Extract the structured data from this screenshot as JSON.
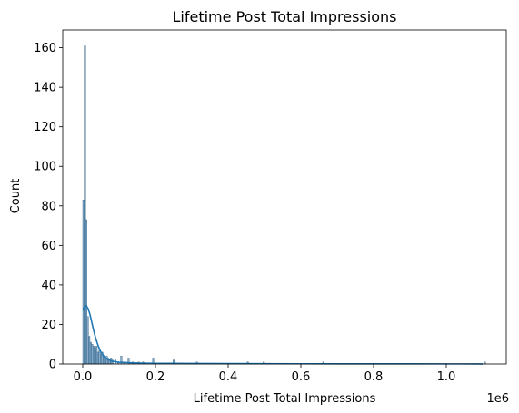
{
  "chart_data": {
    "type": "histogram",
    "title": "Lifetime Post Total Impressions",
    "xlabel": "Lifetime Post Total Impressions",
    "ylabel": "Count",
    "x_offset_label": "1e6",
    "xlim": [
      -55000,
      1165000
    ],
    "ylim": [
      0,
      169
    ],
    "x_ticks": [
      0,
      0.2,
      0.4,
      0.6,
      0.8,
      1.0
    ],
    "x_tick_labels": [
      "0.0",
      "0.2",
      "0.4",
      "0.6",
      "0.8",
      "1.0"
    ],
    "y_ticks": [
      0,
      20,
      40,
      60,
      80,
      100,
      120,
      140,
      160
    ],
    "y_tick_labels": [
      "0",
      "20",
      "40",
      "60",
      "80",
      "100",
      "120",
      "140",
      "160"
    ],
    "grid": false,
    "legend": "none",
    "colors": {
      "bar_fill": "#5b8db5",
      "bar_edge": "#2f5f86",
      "kde_line": "#1f77b4"
    },
    "bins": [
      {
        "x0": 0,
        "x1": 4000,
        "count": 83
      },
      {
        "x0": 4000,
        "x1": 8000,
        "count": 161
      },
      {
        "x0": 8000,
        "x1": 12000,
        "count": 73
      },
      {
        "x0": 12000,
        "x1": 16000,
        "count": 24
      },
      {
        "x0": 16000,
        "x1": 20000,
        "count": 14
      },
      {
        "x0": 20000,
        "x1": 24000,
        "count": 11
      },
      {
        "x0": 24000,
        "x1": 28000,
        "count": 10
      },
      {
        "x0": 28000,
        "x1": 32000,
        "count": 9
      },
      {
        "x0": 32000,
        "x1": 36000,
        "count": 8
      },
      {
        "x0": 36000,
        "x1": 40000,
        "count": 9
      },
      {
        "x0": 40000,
        "x1": 44000,
        "count": 6
      },
      {
        "x0": 44000,
        "x1": 48000,
        "count": 7
      },
      {
        "x0": 48000,
        "x1": 52000,
        "count": 5
      },
      {
        "x0": 52000,
        "x1": 56000,
        "count": 6
      },
      {
        "x0": 56000,
        "x1": 60000,
        "count": 4
      },
      {
        "x0": 60000,
        "x1": 64000,
        "count": 3
      },
      {
        "x0": 64000,
        "x1": 68000,
        "count": 4
      },
      {
        "x0": 68000,
        "x1": 72000,
        "count": 3
      },
      {
        "x0": 72000,
        "x1": 76000,
        "count": 2
      },
      {
        "x0": 76000,
        "x1": 80000,
        "count": 3
      },
      {
        "x0": 80000,
        "x1": 84000,
        "count": 2
      },
      {
        "x0": 88000,
        "x1": 92000,
        "count": 2
      },
      {
        "x0": 96000,
        "x1": 100000,
        "count": 1
      },
      {
        "x0": 104000,
        "x1": 108000,
        "count": 4
      },
      {
        "x0": 112000,
        "x1": 116000,
        "count": 1
      },
      {
        "x0": 124000,
        "x1": 128000,
        "count": 3
      },
      {
        "x0": 136000,
        "x1": 140000,
        "count": 1
      },
      {
        "x0": 152000,
        "x1": 156000,
        "count": 1
      },
      {
        "x0": 164000,
        "x1": 168000,
        "count": 1
      },
      {
        "x0": 192000,
        "x1": 196000,
        "count": 3
      },
      {
        "x0": 248000,
        "x1": 252000,
        "count": 2
      },
      {
        "x0": 312000,
        "x1": 316000,
        "count": 1
      },
      {
        "x0": 452000,
        "x1": 456000,
        "count": 1
      },
      {
        "x0": 496000,
        "x1": 500000,
        "count": 1
      },
      {
        "x0": 660000,
        "x1": 664000,
        "count": 1
      },
      {
        "x0": 1104000,
        "x1": 1108000,
        "count": 1
      }
    ],
    "kde": {
      "x": [
        0,
        5000,
        10000,
        15000,
        20000,
        25000,
        30000,
        35000,
        40000,
        45000,
        50000,
        60000,
        70000,
        80000,
        90000,
        100000,
        120000,
        140000,
        160000,
        180000,
        200000,
        250000,
        300000,
        400000,
        500000,
        600000,
        700000,
        800000,
        900000,
        1000000,
        1100000
      ],
      "y": [
        27,
        29,
        29.5,
        28,
        25,
        21,
        17,
        13.5,
        10.5,
        8,
        6,
        3.5,
        2.2,
        1.5,
        1.1,
        0.9,
        0.7,
        0.55,
        0.45,
        0.4,
        0.35,
        0.3,
        0.25,
        0.2,
        0.15,
        0.12,
        0.1,
        0.08,
        0.07,
        0.06,
        0.05
      ]
    }
  }
}
